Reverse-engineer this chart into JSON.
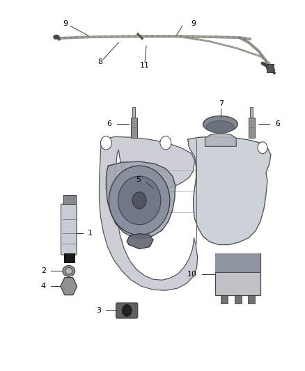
{
  "bg_color": "#ffffff",
  "fig_width": 4.38,
  "fig_height": 5.33,
  "dpi": 100,
  "hose": {
    "color": "#888880",
    "lw": 2.5,
    "clip_color": "#555550",
    "nozzle_color": "#333330"
  },
  "reservoir": {
    "outer_color": "#c8ccd5",
    "outer_edge": "#555555",
    "inner_color": "#a8adb8",
    "inner_edge": "#444444",
    "pump_color": "#909aaa",
    "pump_edge": "#333333"
  },
  "parts": {
    "bolt_color": "#aaaaaa",
    "bolt_edge": "#555555",
    "cap_color": "#909090",
    "cap_edge": "#444444",
    "relay_color": "#c0c2c8",
    "relay_edge": "#444444",
    "pump_body_color": "#d0d4dc",
    "injector_black": "#222222"
  },
  "label_fontsize": 8,
  "line_color": "#333333",
  "line_lw": 0.7
}
